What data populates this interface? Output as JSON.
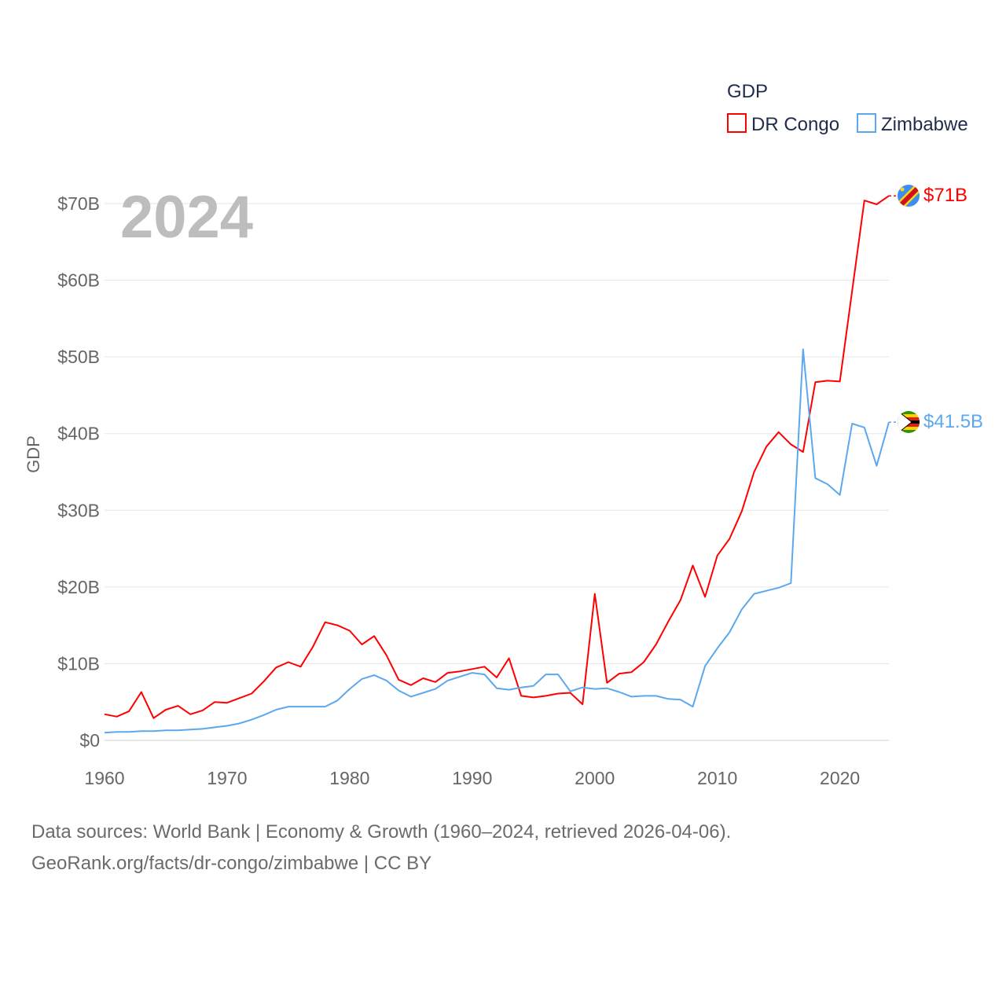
{
  "chart_data": {
    "type": "line",
    "title": "GDP",
    "year_label": "2024",
    "ylabel": "GDP",
    "xlabel": "",
    "xlim": [
      1960,
      2024
    ],
    "ylim": [
      0,
      70
    ],
    "y_unit": "billion USD",
    "x_ticks": [
      1960,
      1970,
      1980,
      1990,
      2000,
      2010,
      2020
    ],
    "y_ticks": [
      0,
      10,
      20,
      30,
      40,
      50,
      60,
      70
    ],
    "y_tick_labels": [
      "$0",
      "$10B",
      "$20B",
      "$30B",
      "$40B",
      "$50B",
      "$60B",
      "$70B"
    ],
    "grid": true,
    "legend_position": "top-right",
    "x": [
      1960,
      1961,
      1962,
      1963,
      1964,
      1965,
      1966,
      1967,
      1968,
      1969,
      1970,
      1971,
      1972,
      1973,
      1974,
      1975,
      1976,
      1977,
      1978,
      1979,
      1980,
      1981,
      1982,
      1983,
      1984,
      1985,
      1986,
      1987,
      1988,
      1989,
      1990,
      1991,
      1992,
      1993,
      1994,
      1995,
      1996,
      1997,
      1998,
      1999,
      2000,
      2001,
      2002,
      2003,
      2004,
      2005,
      2006,
      2007,
      2008,
      2009,
      2010,
      2011,
      2012,
      2013,
      2014,
      2015,
      2016,
      2017,
      2018,
      2019,
      2020,
      2021,
      2022,
      2023,
      2024
    ],
    "series": [
      {
        "name": "DR Congo",
        "color": "#ff0000",
        "end_label": "$71B",
        "values": [
          3.4,
          3.1,
          3.8,
          6.3,
          2.9,
          4.0,
          4.5,
          3.4,
          3.9,
          5.0,
          4.9,
          5.5,
          6.1,
          7.7,
          9.5,
          10.2,
          9.6,
          12.2,
          15.4,
          15.0,
          14.3,
          12.5,
          13.6,
          11.1,
          7.9,
          7.2,
          8.1,
          7.6,
          8.8,
          9.0,
          9.3,
          9.6,
          8.2,
          10.7,
          5.8,
          5.6,
          5.8,
          6.1,
          6.2,
          4.7,
          19.1,
          7.5,
          8.7,
          8.9,
          10.2,
          12.5,
          15.5,
          18.3,
          22.8,
          18.7,
          24.1,
          26.3,
          29.9,
          35.0,
          38.3,
          40.2,
          38.6,
          37.6,
          46.7,
          46.9,
          46.8,
          58.6,
          70.4,
          69.9,
          71.0
        ]
      },
      {
        "name": "Zimbabwe",
        "color": "#5ba8ee",
        "end_label": "$41.5B",
        "values": [
          1.0,
          1.1,
          1.1,
          1.2,
          1.2,
          1.3,
          1.3,
          1.4,
          1.5,
          1.7,
          1.9,
          2.2,
          2.7,
          3.3,
          4.0,
          4.4,
          4.4,
          4.4,
          4.4,
          5.2,
          6.7,
          8.0,
          8.5,
          7.8,
          6.5,
          5.7,
          6.2,
          6.7,
          7.8,
          8.3,
          8.8,
          8.6,
          6.8,
          6.6,
          6.9,
          7.1,
          8.6,
          8.6,
          6.4,
          6.9,
          6.7,
          6.8,
          6.3,
          5.7,
          5.8,
          5.8,
          5.4,
          5.3,
          4.4,
          9.7,
          12.0,
          14.1,
          17.1,
          19.1,
          19.5,
          19.9,
          20.5,
          51.0,
          34.2,
          33.4,
          32.0,
          41.3,
          40.8,
          35.8,
          41.5
        ]
      }
    ]
  },
  "footer": {
    "line1": "Data sources: World Bank | Economy & Growth (1960–2024, retrieved 2026-04-06).",
    "line2": "GeoRank.org/facts/dr-congo/zimbabwe | CC BY"
  }
}
